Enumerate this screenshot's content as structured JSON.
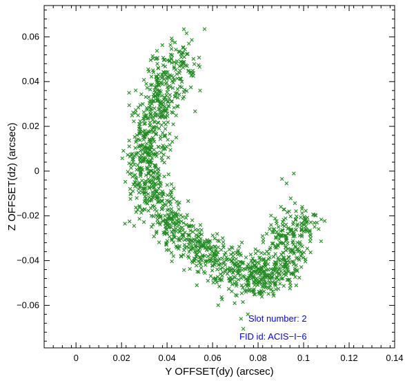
{
  "chart_data": {
    "type": "scatter",
    "title": "",
    "xlabel": "Y OFFSET(dy) (arcsec)",
    "ylabel": "Z OFFSET(dz) (arcsec)",
    "xlim": [
      -0.014,
      0.14
    ],
    "ylim": [
      -0.079,
      0.074
    ],
    "x_ticks": [
      0,
      0.02,
      0.04,
      0.06,
      0.08,
      0.1,
      0.12,
      0.14
    ],
    "x_tick_labels": [
      "0",
      "0.02",
      "0.04",
      "0.06",
      "0.08",
      "0.1",
      "0.12",
      "0.14"
    ],
    "y_ticks": [
      -0.06,
      -0.04,
      -0.02,
      0,
      0.02,
      0.04,
      0.06
    ],
    "y_tick_labels": [
      "−0.06",
      "−0.04",
      "−0.02",
      "0",
      "0.02",
      "0.04",
      "0.06"
    ],
    "grid": false,
    "marker": "x",
    "series_color": "#228b22",
    "annotation_color": "#0000ff",
    "annotations": [
      "Slot number: 2",
      "FID id: ACIS−I−6"
    ],
    "series": [
      {
        "x": [
          0.047,
          0.043,
          0.039,
          0.036,
          0.033,
          0.031,
          0.03,
          0.031,
          0.033,
          0.037,
          0.042,
          0.048,
          0.055,
          0.062,
          0.069,
          0.075,
          0.08,
          0.085,
          0.089,
          0.093,
          0.096,
          0.099
        ],
        "y": [
          0.05,
          0.045,
          0.038,
          0.03,
          0.022,
          0.014,
          0.006,
          -0.002,
          -0.01,
          -0.017,
          -0.024,
          -0.03,
          -0.035,
          -0.039,
          -0.043,
          -0.047,
          -0.048,
          -0.046,
          -0.041,
          -0.034,
          -0.027,
          -0.018
        ],
        "spread": [
          0.012,
          0.012,
          0.011,
          0.01,
          0.011,
          0.01,
          0.01,
          0.01,
          0.01,
          0.01,
          0.01,
          0.011,
          0.011,
          0.012,
          0.012,
          0.012,
          0.013,
          0.012,
          0.012,
          0.012,
          0.012,
          0.012
        ]
      }
    ]
  }
}
